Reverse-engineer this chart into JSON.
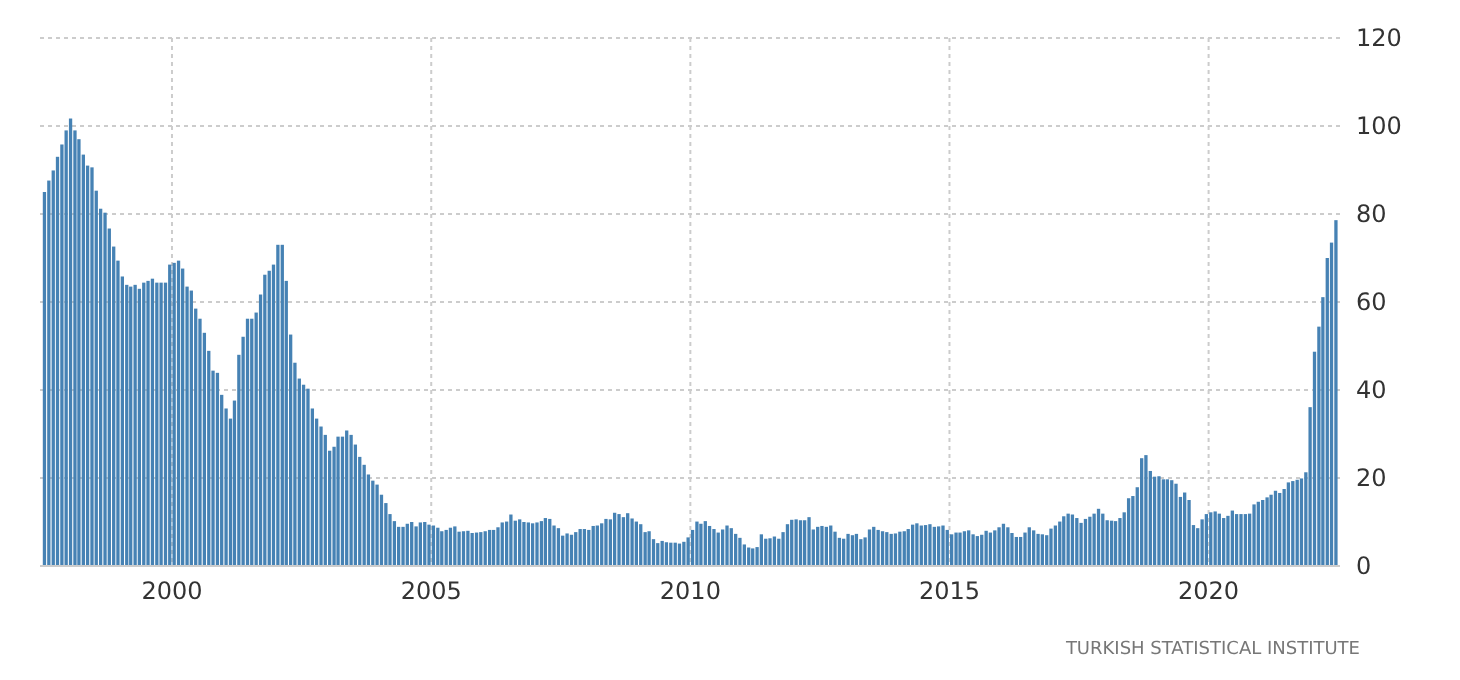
{
  "chart_data": {
    "type": "bar",
    "x": [
      "1997-07",
      "1997-08",
      "1997-09",
      "1997-10",
      "1997-11",
      "1997-12",
      "1998-01",
      "1998-02",
      "1998-03",
      "1998-04",
      "1998-05",
      "1998-06",
      "1998-07",
      "1998-08",
      "1998-09",
      "1998-10",
      "1998-11",
      "1998-12",
      "1999-01",
      "1999-02",
      "1999-03",
      "1999-04",
      "1999-05",
      "1999-06",
      "1999-07",
      "1999-08",
      "1999-09",
      "1999-10",
      "1999-11",
      "1999-12",
      "2000-01",
      "2000-02",
      "2000-03",
      "2000-04",
      "2000-05",
      "2000-06",
      "2000-07",
      "2000-08",
      "2000-09",
      "2000-10",
      "2000-11",
      "2000-12",
      "2001-01",
      "2001-02",
      "2001-03",
      "2001-04",
      "2001-05",
      "2001-06",
      "2001-07",
      "2001-08",
      "2001-09",
      "2001-10",
      "2001-11",
      "2001-12",
      "2002-01",
      "2002-02",
      "2002-03",
      "2002-04",
      "2002-05",
      "2002-06",
      "2002-07",
      "2002-08",
      "2002-09",
      "2002-10",
      "2002-11",
      "2002-12",
      "2003-01",
      "2003-02",
      "2003-03",
      "2003-04",
      "2003-05",
      "2003-06",
      "2003-07",
      "2003-08",
      "2003-09",
      "2003-10",
      "2003-11",
      "2003-12",
      "2004-01",
      "2004-02",
      "2004-03",
      "2004-04",
      "2004-05",
      "2004-06",
      "2004-07",
      "2004-08",
      "2004-09",
      "2004-10",
      "2004-11",
      "2004-12",
      "2005-01",
      "2005-02",
      "2005-03",
      "2005-04",
      "2005-05",
      "2005-06",
      "2005-07",
      "2005-08",
      "2005-09",
      "2005-10",
      "2005-11",
      "2005-12",
      "2006-01",
      "2006-02",
      "2006-03",
      "2006-04",
      "2006-05",
      "2006-06",
      "2006-07",
      "2006-08",
      "2006-09",
      "2006-10",
      "2006-11",
      "2006-12",
      "2007-01",
      "2007-02",
      "2007-03",
      "2007-04",
      "2007-05",
      "2007-06",
      "2007-07",
      "2007-08",
      "2007-09",
      "2007-10",
      "2007-11",
      "2007-12",
      "2008-01",
      "2008-02",
      "2008-03",
      "2008-04",
      "2008-05",
      "2008-06",
      "2008-07",
      "2008-08",
      "2008-09",
      "2008-10",
      "2008-11",
      "2008-12",
      "2009-01",
      "2009-02",
      "2009-03",
      "2009-04",
      "2009-05",
      "2009-06",
      "2009-07",
      "2009-08",
      "2009-09",
      "2009-10",
      "2009-11",
      "2009-12",
      "2010-01",
      "2010-02",
      "2010-03",
      "2010-04",
      "2010-05",
      "2010-06",
      "2010-07",
      "2010-08",
      "2010-09",
      "2010-10",
      "2010-11",
      "2010-12",
      "2011-01",
      "2011-02",
      "2011-03",
      "2011-04",
      "2011-05",
      "2011-06",
      "2011-07",
      "2011-08",
      "2011-09",
      "2011-10",
      "2011-11",
      "2011-12",
      "2012-01",
      "2012-02",
      "2012-03",
      "2012-04",
      "2012-05",
      "2012-06",
      "2012-07",
      "2012-08",
      "2012-09",
      "2012-10",
      "2012-11",
      "2012-12",
      "2013-01",
      "2013-02",
      "2013-03",
      "2013-04",
      "2013-05",
      "2013-06",
      "2013-07",
      "2013-08",
      "2013-09",
      "2013-10",
      "2013-11",
      "2013-12",
      "2014-01",
      "2014-02",
      "2014-03",
      "2014-04",
      "2014-05",
      "2014-06",
      "2014-07",
      "2014-08",
      "2014-09",
      "2014-10",
      "2014-11",
      "2014-12",
      "2015-01",
      "2015-02",
      "2015-03",
      "2015-04",
      "2015-05",
      "2015-06",
      "2015-07",
      "2015-08",
      "2015-09",
      "2015-10",
      "2015-11",
      "2015-12",
      "2016-01",
      "2016-02",
      "2016-03",
      "2016-04",
      "2016-05",
      "2016-06",
      "2016-07",
      "2016-08",
      "2016-09",
      "2016-10",
      "2016-11",
      "2016-12",
      "2017-01",
      "2017-02",
      "2017-03",
      "2017-04",
      "2017-05",
      "2017-06",
      "2017-07",
      "2017-08",
      "2017-09",
      "2017-10",
      "2017-11",
      "2017-12",
      "2018-01",
      "2018-02",
      "2018-03",
      "2018-04",
      "2018-05",
      "2018-06",
      "2018-07",
      "2018-08",
      "2018-09",
      "2018-10",
      "2018-11",
      "2018-12",
      "2019-01",
      "2019-02",
      "2019-03",
      "2019-04",
      "2019-05",
      "2019-06",
      "2019-07",
      "2019-08",
      "2019-09",
      "2019-10",
      "2019-11",
      "2019-12",
      "2020-01",
      "2020-02",
      "2020-03",
      "2020-04",
      "2020-05",
      "2020-06",
      "2020-07",
      "2020-08",
      "2020-09",
      "2020-10",
      "2020-11",
      "2020-12",
      "2021-01",
      "2021-02",
      "2021-03",
      "2021-04",
      "2021-05",
      "2021-06",
      "2021-07",
      "2021-08",
      "2021-09",
      "2021-10",
      "2021-11",
      "2021-12",
      "2022-01",
      "2022-02",
      "2022-03",
      "2022-04",
      "2022-05",
      "2022-06"
    ],
    "values": [
      85,
      87.6,
      89.9,
      93,
      95.8,
      99,
      101.7,
      99,
      97,
      93.5,
      91,
      90.6,
      85.3,
      81.2,
      80.3,
      76.7,
      72.6,
      69.4,
      65.8,
      63.9,
      63.5,
      63.9,
      63,
      64.4,
      64.8,
      65.3,
      64.4,
      64.4,
      64.4,
      68.5,
      68.9,
      69.4,
      67.6,
      63.5,
      62.6,
      58.5,
      56.2,
      53,
      48.9,
      44.4,
      43.9,
      38.9,
      35.8,
      33.5,
      37.6,
      48,
      52.1,
      56.2,
      56.2,
      57.6,
      61.7,
      66.2,
      67.1,
      68.5,
      73,
      73,
      64.8,
      52.6,
      46.2,
      42.6,
      41.2,
      40.3,
      35.8,
      33.5,
      31.7,
      29.8,
      26.2,
      27.1,
      29.4,
      29.4,
      30.8,
      29.8,
      27.6,
      24.8,
      23,
      20.8,
      19.4,
      18.5,
      16.2,
      14.3,
      11.8,
      10.2,
      8.9,
      8.9,
      9.6,
      10,
      9,
      9.9,
      10,
      9.4,
      9.2,
      8.7,
      7.9,
      8.2,
      8.7,
      9,
      7.8,
      7.9,
      8,
      7.5,
      7.6,
      7.7,
      7.9,
      8.2,
      8.2,
      8.8,
      9.9,
      10.1,
      11.7,
      10.3,
      10.6,
      10,
      9.9,
      9.7,
      9.9,
      10.2,
      10.9,
      10.7,
      9.2,
      8.6,
      6.9,
      7.4,
      7.1,
      7.7,
      8.4,
      8.4,
      8.2,
      9.1,
      9.2,
      9.7,
      10.7,
      10.6,
      12.1,
      11.8,
      11.1,
      12,
      10.8,
      10.1,
      9.5,
      7.7,
      7.9,
      6.1,
      5.2,
      5.7,
      5.4,
      5.3,
      5.3,
      5.1,
      5.5,
      6.5,
      8.2,
      10.1,
      9.6,
      10.2,
      9.1,
      8.4,
      7.6,
      8.3,
      9.2,
      8.6,
      7.3,
      6.4,
      4.9,
      4.2,
      4,
      4.3,
      7.2,
      6.2,
      6.3,
      6.7,
      6.2,
      7.7,
      9.5,
      10.5,
      10.6,
      10.4,
      10.4,
      11.1,
      8.3,
      8.9,
      9.1,
      8.9,
      9.2,
      7.8,
      6.4,
      6.2,
      7.3,
      7,
      7.3,
      6.1,
      6.5,
      8.3,
      8.9,
      8.2,
      7.9,
      7.7,
      7.3,
      7.4,
      7.8,
      7.9,
      8.4,
      9.4,
      9.7,
      9.2,
      9.3,
      9.5,
      8.9,
      9,
      9.2,
      8.2,
      7.2,
      7.6,
      7.6,
      7.9,
      8.1,
      7.2,
      6.8,
      7.1,
      8,
      7.6,
      8.1,
      8.8,
      9.6,
      8.8,
      7.5,
      6.6,
      6.6,
      7.6,
      8.8,
      8.1,
      7.3,
      7.2,
      7,
      8.5,
      9.2,
      10.1,
      11.3,
      11.9,
      11.7,
      10.9,
      9.8,
      10.7,
      11.2,
      11.9,
      13,
      11.9,
      10.4,
      10.3,
      10.2,
      10.9,
      12.2,
      15.4,
      15.9,
      17.9,
      24.5,
      25.2,
      21.6,
      20.3,
      20.4,
      19.7,
      19.7,
      19.5,
      18.7,
      15.7,
      16.7,
      15,
      9.3,
      8.6,
      10.6,
      11.8,
      12.2,
      12.4,
      11.9,
      10.9,
      11.4,
      12.6,
      11.8,
      11.8,
      11.8,
      11.9,
      14,
      14.6,
      15,
      15.6,
      16.2,
      17.1,
      16.6,
      17.5,
      19,
      19.3,
      19.6,
      19.9,
      21.3,
      36.1,
      48.7,
      54.4,
      61.1,
      70,
      73.5,
      78.6
    ],
    "color": "#4682b4",
    "xlim": [
      "1997-06-15",
      "2022-07-15"
    ],
    "xticks": [
      "2000",
      "2005",
      "2010",
      "2015",
      "2020"
    ],
    "ylim": [
      0,
      120
    ],
    "yticks": [
      0,
      20,
      40,
      60,
      80,
      100,
      120
    ],
    "grid": true,
    "annotations": [
      "TURKISH STATISTICAL INSTITUTE"
    ]
  }
}
